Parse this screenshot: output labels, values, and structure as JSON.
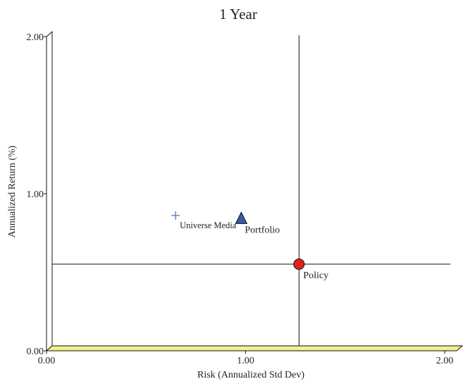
{
  "chart_data": {
    "type": "scatter",
    "title": "1 Year",
    "xlabel": "Risk (Annualized Std Dev)",
    "ylabel": "Annualized Return (%)",
    "xlim": [
      0,
      2
    ],
    "ylim": [
      0,
      2
    ],
    "x_ticks": [
      "0.00",
      "1.00",
      "2.00"
    ],
    "y_ticks": [
      "0.00",
      "1.00",
      "2.00"
    ],
    "grid": false,
    "points": [
      {
        "name": "Universe Median",
        "label": "Universe Media",
        "x": 0.62,
        "y": 0.83,
        "marker": "plus",
        "color": "#4a6fb3"
      },
      {
        "name": "Portfolio",
        "label": "Portfolio",
        "x": 0.95,
        "y": 0.81,
        "marker": "triangle",
        "color": "#3a5aa8"
      },
      {
        "name": "Policy",
        "label": "Policy",
        "x": 1.24,
        "y": 0.52,
        "marker": "circle",
        "color": "#e02020"
      }
    ],
    "reference_lines": [
      {
        "orientation": "vertical",
        "x": 1.24
      },
      {
        "orientation": "horizontal",
        "y": 0.52
      }
    ],
    "floor_color": "#f5f08a"
  }
}
